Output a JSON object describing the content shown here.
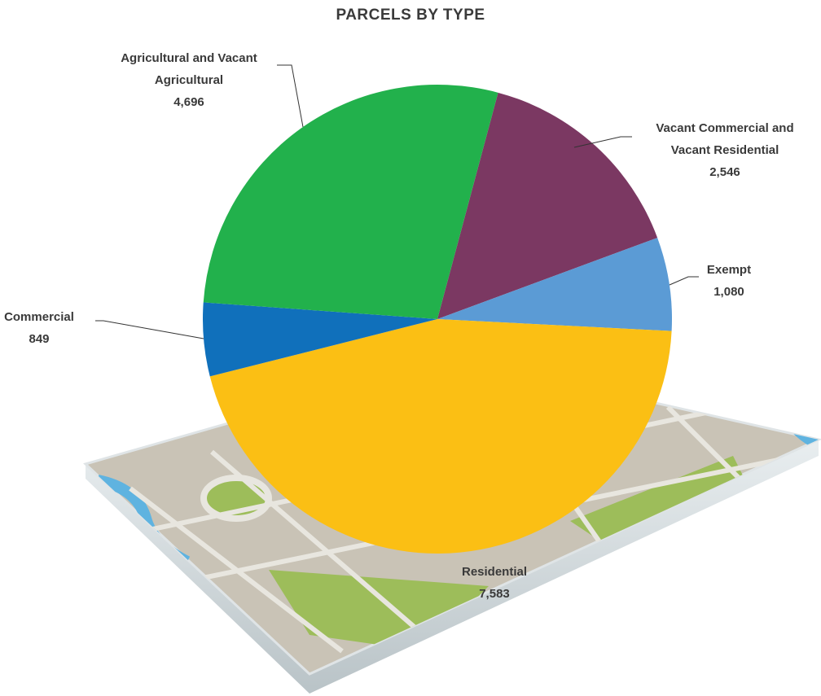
{
  "chart_data": {
    "type": "pie",
    "title": "PARCELS BY TYPE",
    "categories": [
      "Vacant Commercial and Vacant Residential",
      "Exempt",
      "Residential",
      "Commercial",
      "Agricultural and Vacant Agricultural"
    ],
    "values": [
      2546,
      1080,
      7583,
      849,
      4696
    ],
    "value_labels": [
      "2,546",
      "1,080",
      "7,583",
      "849",
      "4,696"
    ],
    "colors": [
      "#7b3862",
      "#5b9bd5",
      "#fbbf14",
      "#1070bb",
      "#22b14c"
    ]
  }
}
